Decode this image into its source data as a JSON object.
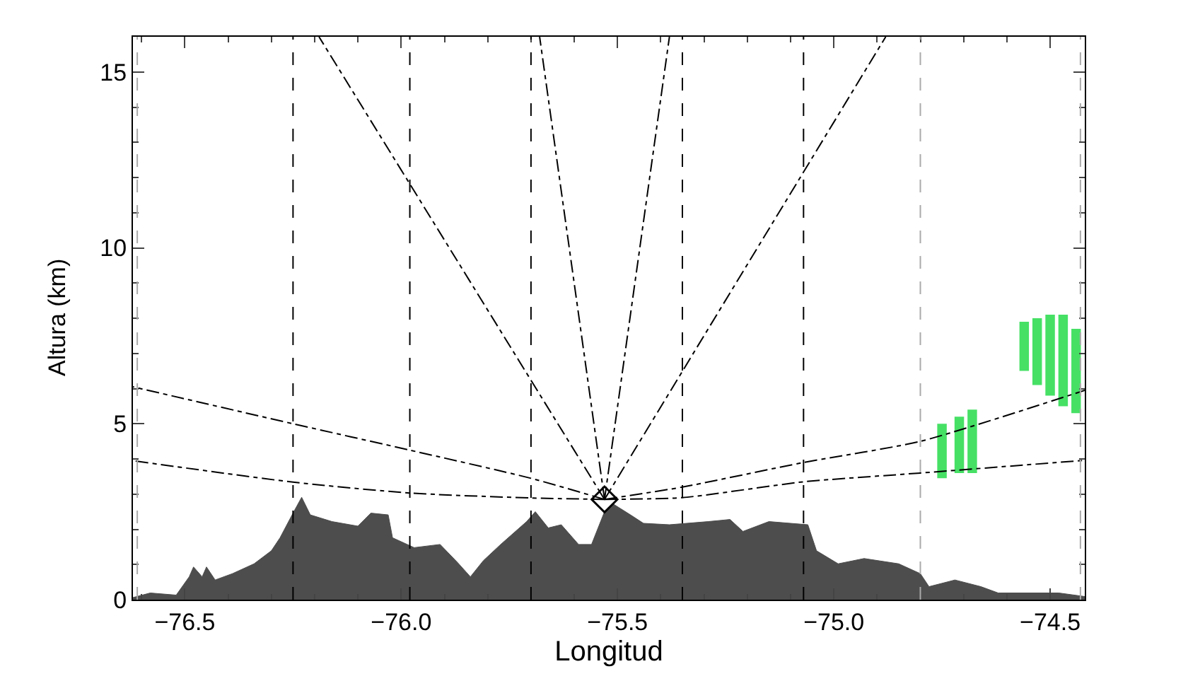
{
  "chart_data": {
    "type": "area",
    "xlabel": "Longitud",
    "ylabel": "Altura (km)",
    "xlim": [
      -76.62,
      -74.42
    ],
    "ylim": [
      0,
      16
    ],
    "xticks": [
      {
        "value": -76.5,
        "label": "−76.5"
      },
      {
        "value": -76.0,
        "label": "−76.0"
      },
      {
        "value": -75.5,
        "label": "−75.5"
      },
      {
        "value": -75.0,
        "label": "−75.0"
      },
      {
        "value": -74.5,
        "label": "−74.5"
      }
    ],
    "yticks": [
      0,
      5,
      10,
      15
    ],
    "ref_lines": [
      {
        "axis": "x",
        "value": -76.61,
        "color": "#aaaaaa",
        "line_style": "dashed"
      },
      {
        "axis": "x",
        "value": -76.25,
        "color": "#000000",
        "line_style": "dashed"
      },
      {
        "axis": "x",
        "value": -75.98,
        "color": "#000000",
        "line_style": "dashed"
      },
      {
        "axis": "x",
        "value": -75.7,
        "color": "#000000",
        "line_style": "dashed"
      },
      {
        "axis": "x",
        "value": -75.35,
        "color": "#000000",
        "line_style": "dashed"
      },
      {
        "axis": "x",
        "value": -75.07,
        "color": "#000000",
        "line_style": "dashed"
      },
      {
        "axis": "x",
        "value": -74.8,
        "color": "#aaaaaa",
        "line_style": "dashed"
      },
      {
        "axis": "x",
        "value": -74.43,
        "color": "#aaaaaa",
        "line_style": "dashed"
      }
    ],
    "series": [
      {
        "color": "#4d4d4d",
        "x": [
          -76.62,
          -76.58,
          -76.52,
          -76.49,
          -76.48,
          -76.46,
          -76.45,
          -76.43,
          -76.39,
          -76.34,
          -76.3,
          -76.28,
          -76.25,
          -76.23,
          -76.21,
          -76.16,
          -76.1,
          -76.07,
          -76.03,
          -76.02,
          -75.97,
          -75.91,
          -75.87,
          -75.84,
          -75.81,
          -75.77,
          -75.71,
          -75.69,
          -75.66,
          -75.63,
          -75.59,
          -75.56,
          -75.53,
          -75.51,
          -75.47,
          -75.44,
          -75.38,
          -75.29,
          -75.24,
          -75.21,
          -75.15,
          -75.06,
          -75.04,
          -74.99,
          -74.93,
          -74.85,
          -74.8,
          -74.78,
          -74.72,
          -74.66,
          -74.62,
          -74.48,
          -74.42
        ],
        "values": [
          0.06,
          0.19,
          0.13,
          0.65,
          0.93,
          0.65,
          0.93,
          0.56,
          0.74,
          1.02,
          1.39,
          1.76,
          2.46,
          2.91,
          2.41,
          2.22,
          2.09,
          2.46,
          2.41,
          1.76,
          1.48,
          1.57,
          1.06,
          0.65,
          1.11,
          1.57,
          2.22,
          2.5,
          2.04,
          2.13,
          1.57,
          1.57,
          2.5,
          2.72,
          2.41,
          2.17,
          2.13,
          2.22,
          2.28,
          1.94,
          2.22,
          2.13,
          1.39,
          1.02,
          1.17,
          1.02,
          0.74,
          0.37,
          0.56,
          0.37,
          0.19,
          0.19,
          0.09
        ]
      },
      {
        "type": "line",
        "color": "#000000",
        "line_style": "dashdot",
        "x": [
          -75.53,
          -76.19
        ],
        "values": [
          2.85,
          16
        ]
      },
      {
        "type": "line",
        "color": "#000000",
        "line_style": "dashdot",
        "x": [
          -75.53,
          -75.68
        ],
        "values": [
          2.85,
          16
        ]
      },
      {
        "type": "line",
        "color": "#000000",
        "line_style": "dashdot",
        "x": [
          -75.53,
          -75.38
        ],
        "values": [
          2.85,
          16
        ]
      },
      {
        "type": "line",
        "color": "#000000",
        "line_style": "dashdot",
        "x": [
          -75.53,
          -74.88
        ],
        "values": [
          2.85,
          16
        ]
      },
      {
        "type": "line",
        "color": "#000000",
        "line_style": "dashdot",
        "x": [
          -75.53,
          -75.7,
          -75.98,
          -76.25,
          -76.62
        ],
        "values": [
          2.85,
          3.45,
          4.25,
          5.0,
          6.05
        ]
      },
      {
        "type": "line",
        "color": "#000000",
        "line_style": "dashdot",
        "x": [
          -75.53,
          -75.7,
          -75.98,
          -76.25,
          -76.62
        ],
        "values": [
          2.85,
          2.89,
          3.03,
          3.34,
          3.95
        ]
      },
      {
        "type": "line",
        "color": "#000000",
        "line_style": "dashdot",
        "x": [
          -75.53,
          -75.35,
          -75.07,
          -74.8,
          -74.42
        ],
        "values": [
          2.85,
          3.2,
          3.9,
          4.5,
          5.95
        ]
      },
      {
        "type": "line",
        "color": "#000000",
        "line_style": "dashdot",
        "x": [
          -75.53,
          -75.35,
          -75.07,
          -74.8,
          -74.42
        ],
        "values": [
          2.85,
          2.9,
          3.35,
          3.6,
          3.96
        ]
      },
      {
        "type": "bar",
        "color": "#33dd55",
        "x": [
          -74.75,
          -74.71,
          -74.68,
          -74.56,
          -74.53,
          -74.5,
          -74.47,
          -74.44
        ],
        "base": [
          3.45,
          3.6,
          3.6,
          6.5,
          6.1,
          5.8,
          5.5,
          5.3
        ],
        "values": [
          1.55,
          1.6,
          1.8,
          1.4,
          1.9,
          2.3,
          2.6,
          2.4
        ]
      },
      {
        "type": "scatter",
        "color": "#000000",
        "marker": "diamond",
        "x": [
          -75.53
        ],
        "values": [
          2.85
        ]
      }
    ]
  }
}
